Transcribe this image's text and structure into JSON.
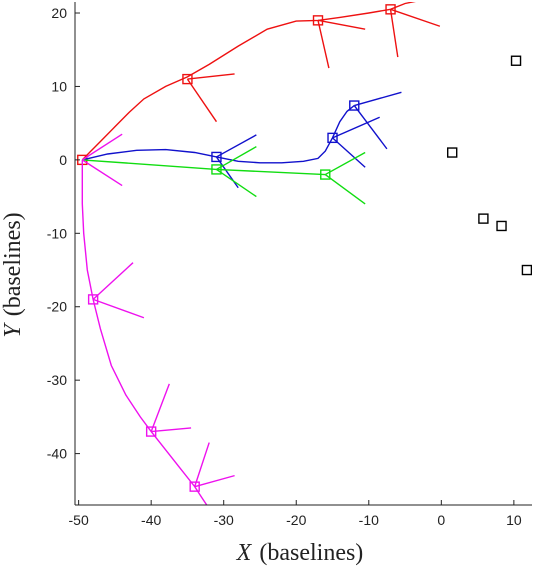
{
  "chart_data": {
    "type": "line",
    "x_label": {
      "var": "X",
      "unit": "(baselines)"
    },
    "y_label": {
      "var": "Y",
      "unit": "(baselines)"
    },
    "xlim": [
      -50.5,
      12.5
    ],
    "ylim": [
      -47,
      21.5
    ],
    "x_ticks": [
      -50,
      -40,
      -30,
      -20,
      -10,
      0,
      10
    ],
    "y_ticks": [
      20,
      10,
      0,
      -10,
      -20,
      -30,
      -40
    ],
    "x_tick_labels": [
      "-50",
      "-40",
      "-30",
      "-20",
      "-10",
      "0",
      "10"
    ],
    "y_tick_labels": [
      "20",
      "10",
      "0",
      "-10",
      "-20",
      "-30",
      "-40"
    ],
    "colors": {
      "red": "#ee1111",
      "blue": "#1111cc",
      "green": "#11dd11",
      "magenta": "#ee11ee",
      "black": "#000000"
    },
    "series": [
      {
        "color": "red",
        "curve": [
          [
            -49.5,
            0
          ],
          [
            -48.5,
            1
          ],
          [
            -47,
            2.5
          ],
          [
            -45,
            4.5
          ],
          [
            -43,
            6.5
          ],
          [
            -41,
            8.3
          ],
          [
            -38,
            10
          ],
          [
            -35,
            11.3
          ],
          [
            -32,
            13
          ],
          [
            -28,
            15.5
          ],
          [
            -24,
            17.8
          ],
          [
            -20,
            18.9
          ],
          [
            -17,
            19
          ],
          [
            -14,
            19.4
          ],
          [
            -10,
            20
          ],
          [
            -7,
            20.5
          ],
          [
            -5,
            21.3
          ],
          [
            -3.5,
            21.6
          ]
        ],
        "markers": [
          [
            -49.5,
            0
          ],
          [
            -35,
            11
          ],
          [
            -17,
            19
          ],
          [
            -7,
            20.5
          ]
        ],
        "rays": [
          {
            "at": [
              -35,
              11
            ],
            "ends": [
              [
                -31,
                5.2
              ],
              [
                -28.5,
                11.7
              ]
            ]
          },
          {
            "at": [
              -17,
              19
            ],
            "ends": [
              [
                -15.5,
                12.5
              ],
              [
                -10.5,
                17.8
              ]
            ]
          },
          {
            "at": [
              -7,
              20.5
            ],
            "ends": [
              [
                -6,
                14
              ],
              [
                -0.2,
                18.2
              ]
            ]
          }
        ]
      },
      {
        "color": "blue",
        "curve": [
          [
            -49.5,
            0
          ],
          [
            -46,
            0.8
          ],
          [
            -42,
            1.3
          ],
          [
            -38,
            1.4
          ],
          [
            -34,
            1
          ],
          [
            -31,
            0.4
          ],
          [
            -28,
            -0.2
          ],
          [
            -25,
            -0.4
          ],
          [
            -22,
            -0.4
          ],
          [
            -19,
            -0.2
          ],
          [
            -17,
            0.2
          ],
          [
            -16,
            1.2
          ],
          [
            -15,
            3
          ],
          [
            -14,
            5.2
          ],
          [
            -13,
            6.6
          ],
          [
            -12,
            7.4
          ]
        ],
        "markers": [
          [
            -31,
            0.4
          ],
          [
            -15,
            3
          ],
          [
            -12,
            7.4
          ]
        ],
        "rays": [
          {
            "at": [
              -31,
              0.4
            ],
            "ends": [
              [
                -25.5,
                3.4
              ],
              [
                -28,
                -3.8
              ]
            ]
          },
          {
            "at": [
              -15,
              3
            ],
            "ends": [
              [
                -10.5,
                -1
              ],
              [
                -8.5,
                5.8
              ]
            ]
          },
          {
            "at": [
              -12,
              7.4
            ],
            "ends": [
              [
                -7.5,
                1.5
              ],
              [
                -5.5,
                9.2
              ]
            ]
          }
        ]
      },
      {
        "color": "green",
        "curve": [
          [
            -49.5,
            0
          ],
          [
            -31,
            -1.3
          ],
          [
            -16,
            -2
          ]
        ],
        "markers": [
          [
            -31,
            -1.3
          ],
          [
            -16,
            -2
          ]
        ],
        "rays": [
          {
            "at": [
              -31,
              -1.3
            ],
            "ends": [
              [
                -25.5,
                1.8
              ],
              [
                -25.5,
                -5
              ]
            ]
          },
          {
            "at": [
              -16,
              -2
            ],
            "ends": [
              [
                -10.5,
                1
              ],
              [
                -10.5,
                -6
              ]
            ]
          }
        ]
      },
      {
        "color": "magenta",
        "curve": [
          [
            -49.5,
            0
          ],
          [
            -49.5,
            -6
          ],
          [
            -49.3,
            -10
          ],
          [
            -48.8,
            -15
          ],
          [
            -48,
            -19
          ],
          [
            -47,
            -23
          ],
          [
            -45.5,
            -28
          ],
          [
            -43.5,
            -32
          ],
          [
            -41.5,
            -35
          ],
          [
            -40,
            -37
          ],
          [
            -38,
            -39.5
          ],
          [
            -36,
            -42
          ],
          [
            -34,
            -44.5
          ],
          [
            -33,
            -46
          ],
          [
            -32,
            -47.5
          ]
        ],
        "markers": [
          [
            -48,
            -19
          ],
          [
            -40,
            -37
          ],
          [
            -34,
            -44.5
          ]
        ],
        "rays": [
          {
            "at": [
              -48,
              -19
            ],
            "ends": [
              [
                -42.5,
                -14
              ],
              [
                -41,
                -21.5
              ]
            ]
          },
          {
            "at": [
              -40,
              -37
            ],
            "ends": [
              [
                -37.5,
                -30.5
              ],
              [
                -34.5,
                -36.5
              ]
            ]
          },
          {
            "at": [
              -34,
              -44.5
            ],
            "ends": [
              [
                -32,
                -38.5
              ],
              [
                -28.5,
                -43
              ]
            ]
          }
        ]
      }
    ],
    "origin_rays": {
      "color": "magenta",
      "at": [
        -49.5,
        0
      ],
      "ends": [
        [
          -44,
          3.5
        ],
        [
          -44,
          -3.5
        ]
      ]
    },
    "black_markers": [
      [
        1.5,
        1
      ],
      [
        5.8,
        -8
      ],
      [
        8.3,
        -9
      ],
      [
        10.3,
        13.5
      ],
      [
        11.8,
        -15
      ]
    ]
  }
}
